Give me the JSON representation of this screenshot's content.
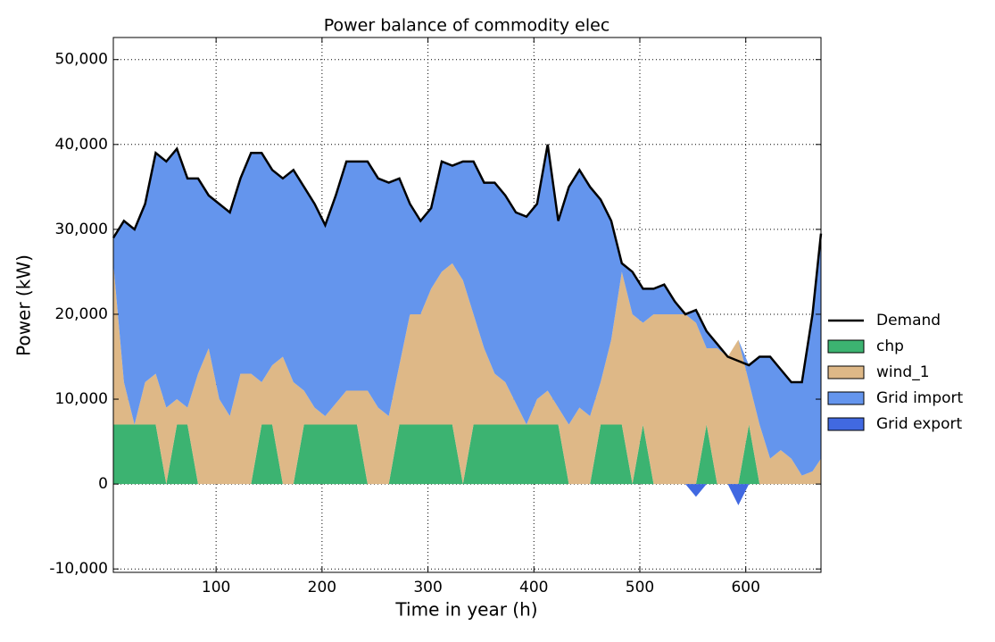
{
  "chart_data": {
    "type": "stacked_area",
    "title": "Power balance of commodity elec",
    "x_label": "Time in year (h)",
    "y_label": "Power (kW)",
    "x": [
      3,
      13,
      23,
      33,
      43,
      53,
      63,
      73,
      83,
      93,
      103,
      113,
      123,
      133,
      143,
      153,
      163,
      173,
      183,
      193,
      203,
      213,
      223,
      233,
      243,
      253,
      263,
      273,
      283,
      293,
      303,
      313,
      323,
      333,
      343,
      353,
      363,
      373,
      383,
      393,
      403,
      413,
      423,
      433,
      443,
      453,
      463,
      473,
      483,
      493,
      503,
      513,
      523,
      533,
      543,
      553,
      563,
      573,
      583,
      593,
      603,
      613,
      623,
      633,
      643,
      653,
      663,
      671
    ],
    "series": [
      {
        "name": "chp",
        "color": "#3cb371",
        "values": [
          7000,
          7000,
          7000,
          7000,
          7000,
          0,
          7000,
          7000,
          0,
          0,
          0,
          0,
          0,
          0,
          7000,
          7000,
          0,
          0,
          7000,
          7000,
          7000,
          7000,
          7000,
          7000,
          0,
          0,
          0,
          7000,
          7000,
          7000,
          7000,
          7000,
          7000,
          0,
          7000,
          7000,
          7000,
          7000,
          7000,
          7000,
          7000,
          7000,
          7000,
          0,
          0,
          0,
          7000,
          7000,
          7000,
          0,
          7000,
          0,
          0,
          0,
          0,
          0,
          7000,
          0,
          0,
          0,
          7000,
          0,
          0,
          0,
          0,
          0,
          0,
          0
        ]
      },
      {
        "name": "wind_1",
        "color": "#deb887",
        "values": [
          19000,
          5000,
          0,
          5000,
          6000,
          9000,
          3000,
          2000,
          13000,
          16000,
          10000,
          8000,
          13000,
          13000,
          5000,
          7000,
          15000,
          12000,
          4000,
          2000,
          1000,
          2500,
          4000,
          4000,
          11000,
          9000,
          8000,
          7000,
          13000,
          13000,
          16000,
          18000,
          19000,
          24000,
          13000,
          9000,
          6000,
          5000,
          2500,
          0,
          3000,
          4000,
          2000,
          7000,
          9000,
          8000,
          5000,
          10000,
          18000,
          20000,
          12000,
          20000,
          20000,
          20000,
          20000,
          19000,
          9000,
          16000,
          15000,
          17000,
          5000,
          7000,
          3000,
          4000,
          3000,
          1000,
          1500,
          3000
        ]
      },
      {
        "name": "Grid import",
        "color": "#6495ed",
        "values": [
          3000,
          19000,
          23000,
          21000,
          26000,
          29000,
          29500,
          27000,
          23000,
          18000,
          23000,
          24000,
          23000,
          26000,
          27000,
          23000,
          21000,
          25000,
          24000,
          24000,
          22500,
          24500,
          27000,
          27000,
          27000,
          27000,
          27500,
          22000,
          13000,
          11000,
          9500,
          13000,
          11500,
          14000,
          18000,
          19500,
          22500,
          22000,
          22500,
          24500,
          23000,
          29000,
          22000,
          28000,
          28000,
          27000,
          21500,
          14000,
          1000,
          5000,
          4000,
          3000,
          3500,
          1500,
          0,
          1500,
          2000,
          500,
          0,
          0,
          2000,
          8000,
          12000,
          9500,
          9000,
          11000,
          18500,
          26500
        ]
      },
      {
        "name": "Grid export",
        "color": "#4169e1",
        "values": [
          0,
          0,
          0,
          0,
          0,
          0,
          0,
          0,
          0,
          0,
          0,
          0,
          0,
          0,
          0,
          0,
          0,
          0,
          0,
          0,
          0,
          0,
          0,
          0,
          0,
          0,
          0,
          0,
          0,
          0,
          0,
          0,
          0,
          0,
          0,
          0,
          0,
          0,
          0,
          0,
          0,
          0,
          0,
          0,
          0,
          0,
          0,
          0,
          0,
          0,
          0,
          0,
          0,
          0,
          0,
          -1500,
          0,
          0,
          0,
          -2500,
          0,
          0,
          0,
          0,
          0,
          0,
          0,
          0
        ]
      }
    ],
    "line_series": {
      "name": "Demand",
      "color": "#000000",
      "values": [
        29000,
        31000,
        30000,
        33000,
        39000,
        38000,
        39500,
        36000,
        36000,
        34000,
        33000,
        32000,
        36000,
        39000,
        39000,
        37000,
        36000,
        37000,
        35000,
        33000,
        30500,
        34000,
        38000,
        38000,
        38000,
        36000,
        35500,
        36000,
        33000,
        31000,
        32500,
        38000,
        37500,
        38000,
        38000,
        35500,
        35500,
        34000,
        32000,
        31500,
        33000,
        40000,
        31000,
        35000,
        37000,
        35000,
        33500,
        31000,
        26000,
        25000,
        23000,
        23000,
        23500,
        21500,
        20000,
        20500,
        18000,
        16500,
        15000,
        14500,
        14000,
        15000,
        15000,
        13500,
        12000,
        12000,
        20000,
        29500
      ]
    },
    "xlim": [
      3,
      671
    ],
    "ylim": [
      -10400,
      52600
    ],
    "xticks": [
      100,
      200,
      300,
      400,
      500,
      600
    ],
    "yticks": [
      {
        "value": -10000,
        "label": "-10,000"
      },
      0,
      {
        "value": 10000,
        "label": "10,000"
      },
      {
        "value": 20000,
        "label": "20,000"
      },
      {
        "value": 30000,
        "label": "30,000"
      },
      {
        "value": 40000,
        "label": "40,000"
      },
      {
        "value": 50000,
        "label": "50,000"
      }
    ],
    "grid": true,
    "legend": "right"
  }
}
